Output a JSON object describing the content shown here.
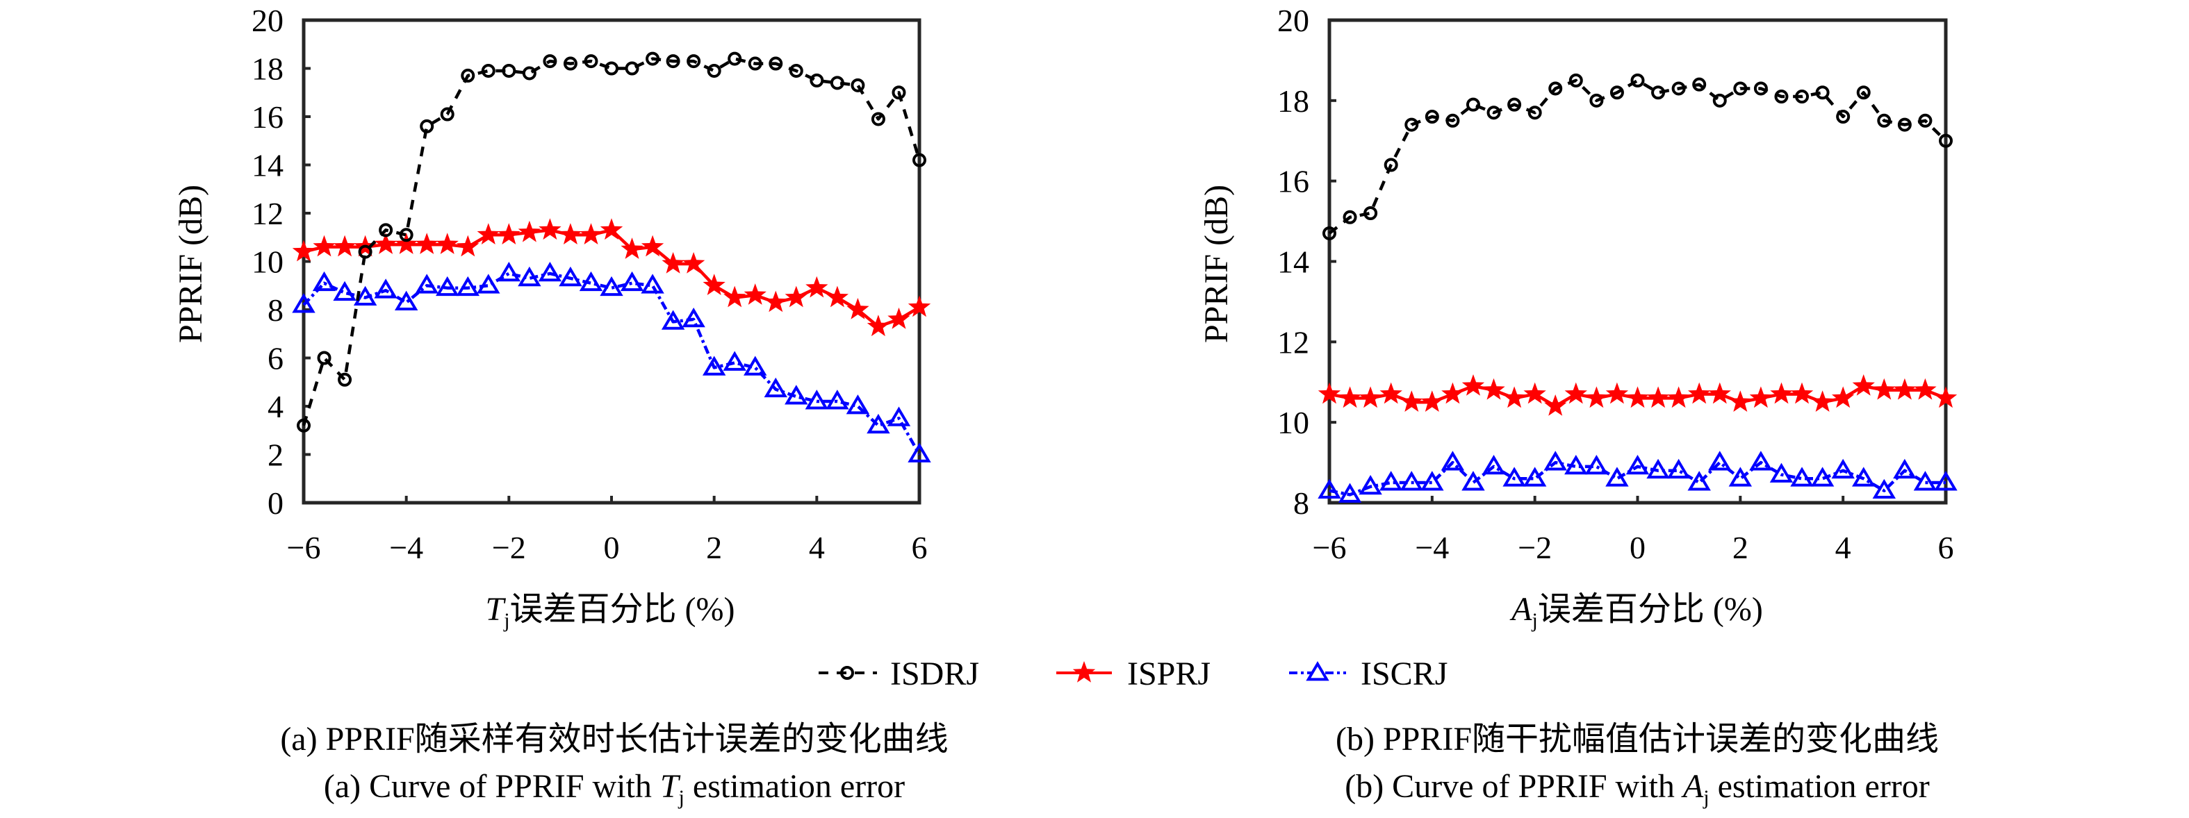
{
  "legend": {
    "placement": "bottom-center",
    "items": [
      {
        "name": "ISDRJ",
        "color": "#000000",
        "marker": "circle",
        "line": "dashed"
      },
      {
        "name": "ISPRJ",
        "color": "#ff0000",
        "marker": "star",
        "line": "solid"
      },
      {
        "name": "ISCRJ",
        "color": "#0000ff",
        "marker": "triangle",
        "line": "dash-dot"
      }
    ]
  },
  "chart_data": [
    {
      "type": "line",
      "panel": "a",
      "title": "",
      "caption_cn": "(a) PPRIF随采样有效时长估计误差的变化曲线",
      "caption_en_prefix": "(a) Curve of PPRIF with ",
      "caption_en_var": "T",
      "caption_en_sub": "j",
      "caption_en_suffix": " estimation error",
      "xlabel_var": "T",
      "xlabel_sub": "j",
      "xlabel_text": "误差百分比 (%)",
      "ylabel": "PPRIF (dB)",
      "xlim": [
        -6,
        6
      ],
      "ylim": [
        0,
        20
      ],
      "xticks": [
        "−6",
        "−4",
        "−2",
        "0",
        "2",
        "4",
        "6"
      ],
      "xtick_values": [
        -6,
        -4,
        -2,
        0,
        2,
        4,
        6
      ],
      "yticks": [
        "0",
        "2",
        "4",
        "6",
        "8",
        "10",
        "12",
        "14",
        "16",
        "18",
        "20"
      ],
      "ytick_values": [
        0,
        2,
        4,
        6,
        8,
        10,
        12,
        14,
        16,
        18,
        20
      ],
      "grid": false,
      "x": [
        -6,
        -5.6,
        -5.2,
        -4.8,
        -4.4,
        -4,
        -3.6,
        -3.2,
        -2.8,
        -2.4,
        -2,
        -1.6,
        -1.2,
        -0.8,
        -0.4,
        0,
        0.4,
        0.8,
        1.2,
        1.6,
        2,
        2.4,
        2.8,
        3.2,
        3.6,
        4,
        4.4,
        4.8,
        5.2,
        5.6,
        6
      ],
      "series": [
        {
          "name": "ISDRJ",
          "values": [
            3.2,
            6.0,
            5.1,
            10.4,
            11.3,
            11.1,
            15.6,
            16.1,
            17.7,
            17.9,
            17.9,
            17.8,
            18.3,
            18.2,
            18.3,
            18.0,
            18.0,
            18.4,
            18.3,
            18.3,
            17.9,
            18.4,
            18.2,
            18.2,
            17.9,
            17.5,
            17.4,
            17.3,
            15.9,
            17.0,
            14.2
          ]
        },
        {
          "name": "ISPRJ",
          "values": [
            10.4,
            10.6,
            10.6,
            10.6,
            10.7,
            10.7,
            10.7,
            10.7,
            10.6,
            11.1,
            11.1,
            11.2,
            11.3,
            11.1,
            11.1,
            11.3,
            10.5,
            10.6,
            9.9,
            9.9,
            9.0,
            8.5,
            8.6,
            8.3,
            8.5,
            8.9,
            8.5,
            8.0,
            7.3,
            7.6,
            8.1
          ]
        },
        {
          "name": "ISCRJ",
          "values": [
            8.2,
            9.1,
            8.7,
            8.5,
            8.8,
            8.3,
            9.0,
            8.9,
            8.9,
            9.0,
            9.5,
            9.3,
            9.5,
            9.3,
            9.1,
            8.9,
            9.1,
            9.0,
            7.5,
            7.6,
            5.6,
            5.8,
            5.6,
            4.7,
            4.4,
            4.2,
            4.2,
            4.0,
            3.2,
            3.5,
            2.0
          ]
        }
      ]
    },
    {
      "type": "line",
      "panel": "b",
      "title": "",
      "caption_cn": "(b) PPRIF随干扰幅值估计误差的变化曲线",
      "caption_en_prefix": "(b) Curve of PPRIF with ",
      "caption_en_var": "A",
      "caption_en_sub": "j",
      "caption_en_suffix": " estimation error",
      "xlabel_var": "A",
      "xlabel_sub": "j",
      "xlabel_text": "误差百分比 (%)",
      "ylabel": "PPRIF (dB)",
      "xlim": [
        -6,
        6
      ],
      "ylim": [
        8,
        20
      ],
      "xticks": [
        "−6",
        "−4",
        "−2",
        "0",
        "2",
        "4",
        "6"
      ],
      "xtick_values": [
        -6,
        -4,
        -2,
        0,
        2,
        4,
        6
      ],
      "yticks": [
        "8",
        "10",
        "12",
        "14",
        "16",
        "18",
        "20"
      ],
      "ytick_values": [
        8,
        10,
        12,
        14,
        16,
        18,
        20
      ],
      "grid": false,
      "x": [
        -6,
        -5.6,
        -5.2,
        -4.8,
        -4.4,
        -4,
        -3.6,
        -3.2,
        -2.8,
        -2.4,
        -2,
        -1.6,
        -1.2,
        -0.8,
        -0.4,
        0,
        0.4,
        0.8,
        1.2,
        1.6,
        2,
        2.4,
        2.8,
        3.2,
        3.6,
        4,
        4.4,
        4.8,
        5.2,
        5.6,
        6
      ],
      "series": [
        {
          "name": "ISDRJ",
          "values": [
            14.7,
            15.1,
            15.2,
            16.4,
            17.4,
            17.6,
            17.5,
            17.9,
            17.7,
            17.9,
            17.7,
            18.3,
            18.5,
            18.0,
            18.2,
            18.5,
            18.2,
            18.3,
            18.4,
            18.0,
            18.3,
            18.3,
            18.1,
            18.1,
            18.2,
            17.6,
            18.2,
            17.5,
            17.4,
            17.5,
            17.0
          ]
        },
        {
          "name": "ISPRJ",
          "values": [
            10.7,
            10.6,
            10.6,
            10.7,
            10.5,
            10.5,
            10.7,
            10.9,
            10.8,
            10.6,
            10.7,
            10.4,
            10.7,
            10.6,
            10.7,
            10.6,
            10.6,
            10.6,
            10.7,
            10.7,
            10.5,
            10.6,
            10.7,
            10.7,
            10.5,
            10.6,
            10.9,
            10.8,
            10.8,
            10.8,
            10.6
          ]
        },
        {
          "name": "ISCRJ",
          "values": [
            8.3,
            8.2,
            8.4,
            8.5,
            8.5,
            8.5,
            9.0,
            8.5,
            8.9,
            8.6,
            8.6,
            9.0,
            8.9,
            8.9,
            8.6,
            8.9,
            8.8,
            8.8,
            8.5,
            9.0,
            8.6,
            9.0,
            8.7,
            8.6,
            8.6,
            8.8,
            8.6,
            8.3,
            8.8,
            8.5,
            8.5
          ]
        }
      ]
    }
  ]
}
